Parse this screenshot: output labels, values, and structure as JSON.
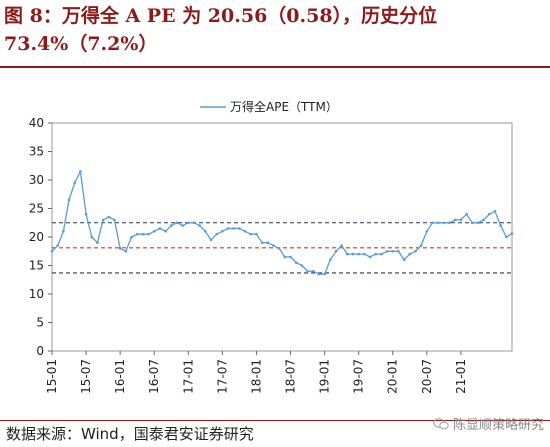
{
  "figure": {
    "title": "图 8：万得全 A PE 为 20.56（0.58），历史分位 73.4%（7.2%）",
    "source": "数据来源：Wind，国泰君安证券研究",
    "watermark": "陈显顺策略研究",
    "watermark_icon": "wechat-icon"
  },
  "colors": {
    "title": "#8b1a1a",
    "series": "#5b9bd5",
    "band": "#1f3864",
    "mean": "#e0301e"
  },
  "chart_data": {
    "type": "line",
    "legend": {
      "labels": [
        "万得全APE（TTM）"
      ],
      "placement": "top-center"
    },
    "ylim": [
      0,
      40
    ],
    "yticks": [
      0,
      5,
      10,
      15,
      20,
      25,
      30,
      35,
      40
    ],
    "xlim": [
      "2015-01",
      "2021-10"
    ],
    "xtick_labels": [
      "15-01",
      "15-07",
      "16-01",
      "16-07",
      "17-01",
      "17-07",
      "18-01",
      "18-07",
      "19-01",
      "19-07",
      "20-01",
      "20-07",
      "21-01"
    ],
    "grid": false,
    "reference_lines": [
      {
        "value": 22.5,
        "style": "dashed",
        "color": "#1f3864"
      },
      {
        "value": 18.1,
        "style": "dashed",
        "color": "#e0301e"
      },
      {
        "value": 13.7,
        "style": "dashed",
        "color": "#1f3864"
      }
    ],
    "series": [
      {
        "x": [
          "2015-01",
          "2015-02",
          "2015-03",
          "2015-04",
          "2015-05",
          "2015-06",
          "2015-07",
          "2015-08",
          "2015-09",
          "2015-10",
          "2015-11",
          "2015-12",
          "2016-01",
          "2016-02",
          "2016-03",
          "2016-04",
          "2016-05",
          "2016-06",
          "2016-07",
          "2016-08",
          "2016-09",
          "2016-10",
          "2016-11",
          "2016-12",
          "2017-01",
          "2017-02",
          "2017-03",
          "2017-04",
          "2017-05",
          "2017-06",
          "2017-07",
          "2017-08",
          "2017-09",
          "2017-10",
          "2017-11",
          "2017-12",
          "2018-01",
          "2018-02",
          "2018-03",
          "2018-04",
          "2018-05",
          "2018-06",
          "2018-07",
          "2018-08",
          "2018-09",
          "2018-10",
          "2018-11",
          "2018-12",
          "2019-01",
          "2019-02",
          "2019-03",
          "2019-04",
          "2019-05",
          "2019-06",
          "2019-07",
          "2019-08",
          "2019-09",
          "2019-10",
          "2019-11",
          "2019-12",
          "2020-01",
          "2020-02",
          "2020-03",
          "2020-04",
          "2020-05",
          "2020-06",
          "2020-07",
          "2020-08",
          "2020-09",
          "2020-10",
          "2020-11",
          "2020-12",
          "2021-01",
          "2021-02",
          "2021-03",
          "2021-04",
          "2021-05",
          "2021-06",
          "2021-07",
          "2021-08",
          "2021-09",
          "2021-10"
        ],
        "values": [
          17.5,
          18.5,
          21.0,
          26.5,
          29.5,
          31.5,
          24.0,
          20.0,
          19.0,
          23.0,
          23.5,
          23.0,
          18.0,
          17.5,
          20.0,
          20.5,
          20.5,
          20.5,
          21.0,
          21.5,
          21.0,
          22.0,
          22.5,
          22.0,
          22.5,
          22.5,
          22.0,
          21.0,
          19.5,
          20.5,
          21.0,
          21.5,
          21.5,
          21.5,
          21.0,
          20.5,
          20.5,
          19.0,
          19.0,
          18.5,
          18.0,
          16.5,
          16.5,
          15.5,
          15.0,
          14.0,
          14.0,
          13.5,
          13.5,
          16.0,
          17.5,
          18.5,
          17.0,
          17.0,
          17.0,
          17.0,
          16.5,
          17.0,
          17.0,
          17.5,
          17.5,
          17.5,
          16.0,
          17.0,
          17.5,
          18.5,
          21.0,
          22.5,
          22.5,
          22.5,
          22.5,
          23.0,
          23.0,
          24.0,
          22.5,
          22.5,
          23.0,
          24.0,
          24.5,
          22.0,
          20.0,
          20.6
        ]
      }
    ]
  }
}
